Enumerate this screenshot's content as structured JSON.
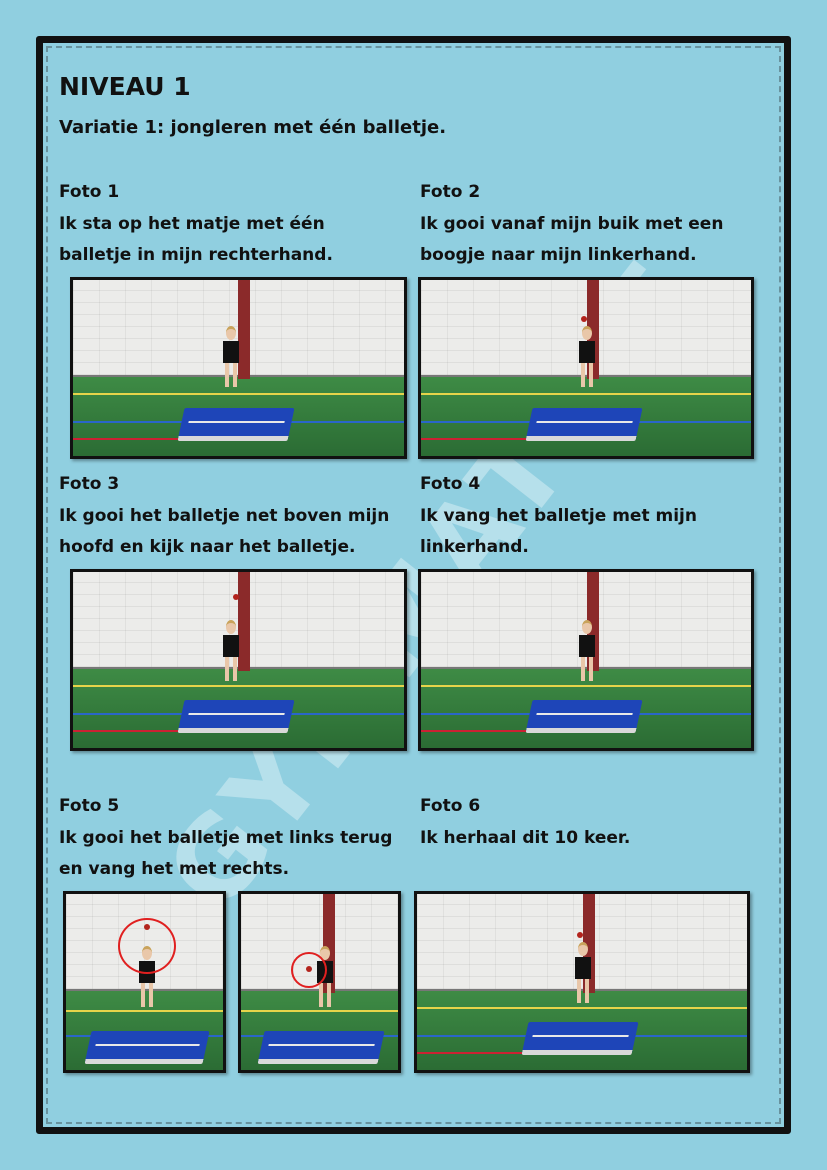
{
  "title": "NIVEAU 1",
  "subtitle": "Variatie 1: jongleren met één balletje.",
  "watermark": "GYMMATIZE",
  "photos": [
    {
      "heading": "Foto 1",
      "lines": [
        "Ik sta op het matje met één",
        "balletje in mijn rechterhand."
      ]
    },
    {
      "heading": "Foto 2",
      "lines": [
        "Ik gooi vanaf mijn buik met een",
        "boogje naar mijn linkerhand."
      ]
    },
    {
      "heading": "Foto 3",
      "lines": [
        "Ik gooi het balletje net boven mijn",
        "hoofd en kijk naar het balletje."
      ]
    },
    {
      "heading": "Foto 4",
      "lines": [
        "Ik vang het balletje met mijn",
        "linkerhand."
      ]
    },
    {
      "heading": "Foto 5",
      "lines": [
        "Ik gooi het balletje met links terug",
        "en vang het met rechts."
      ]
    },
    {
      "heading": "Foto 6",
      "lines": [
        "Ik herhaal dit 10 keer."
      ]
    }
  ],
  "colors": {
    "background": "#90cfe0",
    "border": "#111111",
    "highlight_circle": "#e02020"
  }
}
